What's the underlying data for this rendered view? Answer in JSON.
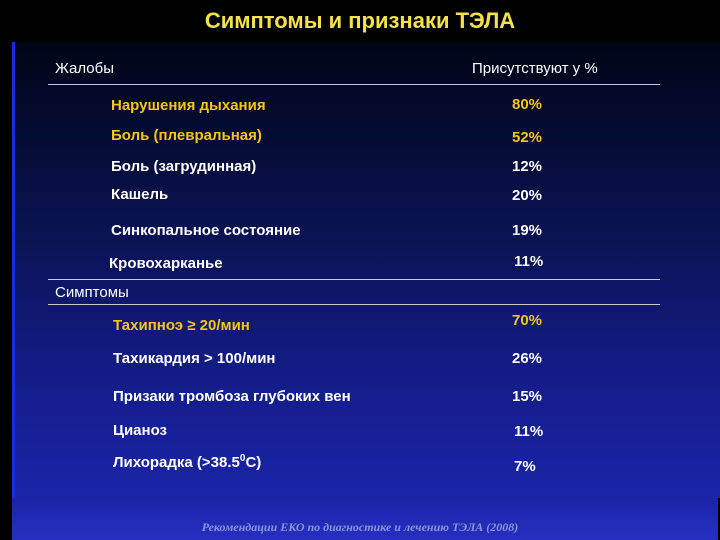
{
  "title": "Симптомы и признаки ТЭЛА",
  "complaints_header": "Жалобы",
  "percent_header": "Присутствуют у %",
  "symptoms_header": "Симптомы",
  "colors": {
    "highlight": "#f5c518",
    "normal": "#ffffff",
    "title": "#f5e14a"
  },
  "complaints": [
    {
      "label": "Нарушения дыхания",
      "value": "80%",
      "highlight": true
    },
    {
      "label": "Боль (плевральная)",
      "value": "52%",
      "highlight": true
    },
    {
      "label": "Боль (загрудинная)",
      "value": "12%",
      "highlight": false
    },
    {
      "label": "Кашель",
      "value": "20%",
      "highlight": false
    },
    {
      "label": "Синкопальное состояние",
      "value": "19%",
      "highlight": false
    },
    {
      "label": "Кровохарканье",
      "value": "11%",
      "highlight": false
    }
  ],
  "symptoms": [
    {
      "label": "Тахипноэ ≥ 20/мин",
      "value": "70%",
      "highlight": true
    },
    {
      "label": "Тахикардия > 100/мин",
      "value": "26%",
      "highlight": false
    },
    {
      "label": "Призаки тромбоза глубоких вен",
      "value": "15%",
      "highlight": false
    },
    {
      "label": "Цианоз",
      "value": "11%",
      "highlight": false
    },
    {
      "label": "Лихорадка (>38.5",
      "label_sup": "0",
      "label_tail": "С)",
      "value": "7%",
      "highlight": false
    }
  ],
  "footer": "Рекомендации ЕКО по диагностике и лечению ТЭЛА (2008)"
}
